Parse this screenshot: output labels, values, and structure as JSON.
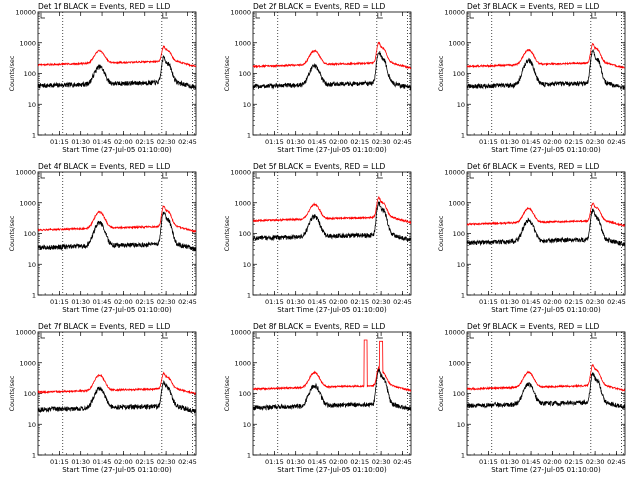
{
  "figure": {
    "background": "#ffffff"
  },
  "chart_data": [
    {
      "type": "line",
      "title": "Det 1f BLACK = Events, RED = LLD",
      "xlabel": "Start Time (27-Jul-05 01:10:00)",
      "ylabel": "Counts/sec",
      "x_ticks": [
        "01:15",
        "01:30",
        "01:45",
        "02:00",
        "02:15",
        "02:30",
        "02:45"
      ],
      "y_ticks": [
        "1",
        "10",
        "100",
        "1000",
        "10000"
      ],
      "yscale": "log",
      "ylim": [
        1,
        10000
      ],
      "series": [
        {
          "color": "#000000",
          "base": 40,
          "peak1": 160,
          "peak2": 330
        },
        {
          "color": "#ff0000",
          "base": 190,
          "peak1": 520,
          "peak2": 700
        }
      ]
    },
    {
      "type": "line",
      "title": "Det 2f BLACK = Events, RED = LLD",
      "xlabel": "Start Time (27-Jul-05 01:10:00)",
      "ylabel": "Counts/sec",
      "x_ticks": [
        "01:15",
        "01:30",
        "01:45",
        "02:00",
        "02:15",
        "02:30",
        "02:45"
      ],
      "y_ticks": [
        "1",
        "10",
        "100",
        "1000",
        "10000"
      ],
      "yscale": "log",
      "ylim": [
        1,
        10000
      ],
      "series": [
        {
          "color": "#000000",
          "base": 38,
          "peak1": 170,
          "peak2": 520
        },
        {
          "color": "#ff0000",
          "base": 170,
          "peak1": 520,
          "peak2": 950
        }
      ]
    },
    {
      "type": "line",
      "title": "Det 3f BLACK = Events, RED = LLD",
      "xlabel": "Start Time (27-Jul-05 01:10:00)",
      "ylabel": "Counts/sec",
      "x_ticks": [
        "01:15",
        "01:30",
        "01:45",
        "02:00",
        "02:15",
        "02:30",
        "02:45"
      ],
      "y_ticks": [
        "1",
        "10",
        "100",
        "1000",
        "10000"
      ],
      "yscale": "log",
      "ylim": [
        1,
        10000
      ],
      "series": [
        {
          "color": "#000000",
          "base": 38,
          "peak1": 260,
          "peak2": 520
        },
        {
          "color": "#ff0000",
          "base": 170,
          "peak1": 560,
          "peak2": 850
        }
      ]
    },
    {
      "type": "line",
      "title": "Det 4f BLACK = Events, RED = LLD",
      "xlabel": "Start Time (27-Jul-05 01:10:00)",
      "ylabel": "Counts/sec",
      "x_ticks": [
        "01:15",
        "01:30",
        "01:45",
        "02:00",
        "02:15",
        "02:30",
        "02:45"
      ],
      "y_ticks": [
        "1",
        "10",
        "100",
        "1000",
        "10000"
      ],
      "yscale": "log",
      "ylim": [
        1,
        10000
      ],
      "series": [
        {
          "color": "#000000",
          "base": 35,
          "peak1": 220,
          "peak2": 500
        },
        {
          "color": "#ff0000",
          "base": 130,
          "peak1": 480,
          "peak2": 750
        }
      ]
    },
    {
      "type": "line",
      "title": "Det 5f BLACK = Events, RED = LLD",
      "xlabel": "Start Time (27-Jul-05 01:10:00)",
      "ylabel": "Counts/sec",
      "x_ticks": [
        "01:15",
        "01:30",
        "01:45",
        "02:00",
        "02:15",
        "02:30",
        "02:45"
      ],
      "y_ticks": [
        "1",
        "10",
        "100",
        "1000",
        "10000"
      ],
      "yscale": "log",
      "ylim": [
        1,
        10000
      ],
      "series": [
        {
          "color": "#000000",
          "base": 70,
          "peak1": 350,
          "peak2": 1000
        },
        {
          "color": "#ff0000",
          "base": 260,
          "peak1": 850,
          "peak2": 1400
        }
      ]
    },
    {
      "type": "line",
      "title": "Det 6f BLACK = Events, RED = LLD",
      "xlabel": "Start Time (27-Jul-05 01:10:00)",
      "ylabel": "Counts/sec",
      "x_ticks": [
        "01:15",
        "01:30",
        "01:45",
        "02:00",
        "02:15",
        "02:30",
        "02:45"
      ],
      "y_ticks": [
        "1",
        "10",
        "100",
        "1000",
        "10000"
      ],
      "yscale": "log",
      "ylim": [
        1,
        10000
      ],
      "series": [
        {
          "color": "#000000",
          "base": 50,
          "peak1": 260,
          "peak2": 550
        },
        {
          "color": "#ff0000",
          "base": 200,
          "peak1": 620,
          "peak2": 900
        }
      ]
    },
    {
      "type": "line",
      "title": "Det 7f BLACK = Events, RED = LLD",
      "xlabel": "Start Time (27-Jul-05 01:10:00)",
      "ylabel": "Counts/sec",
      "x_ticks": [
        "01:15",
        "01:30",
        "01:45",
        "02:00",
        "02:15",
        "02:30",
        "02:45"
      ],
      "y_ticks": [
        "1",
        "10",
        "100",
        "1000",
        "10000"
      ],
      "yscale": "log",
      "ylim": [
        1,
        10000
      ],
      "series": [
        {
          "color": "#000000",
          "base": 30,
          "peak1": 140,
          "peak2": 230
        },
        {
          "color": "#ff0000",
          "base": 110,
          "peak1": 380,
          "peak2": 420
        }
      ]
    },
    {
      "type": "line",
      "title": "Det 8f BLACK = Events, RED = LLD",
      "xlabel": "Start Time (27-Jul-05 01:10:00)",
      "ylabel": "Counts/sec",
      "x_ticks": [
        "01:15",
        "01:30",
        "01:45",
        "02:00",
        "02:15",
        "02:30",
        "02:45"
      ],
      "y_ticks": [
        "1",
        "10",
        "100",
        "1000",
        "10000"
      ],
      "yscale": "log",
      "ylim": [
        1,
        10000
      ],
      "series": [
        {
          "color": "#000000",
          "base": 35,
          "peak1": 180,
          "peak2": 580
        },
        {
          "color": "#ff0000",
          "base": 140,
          "peak1": 460,
          "peak2": 650,
          "spike_a": 5500,
          "spike_b": 5000
        }
      ]
    },
    {
      "type": "line",
      "title": "Det 9f BLACK = Events, RED = LLD",
      "xlabel": "Start Time (27-Jul-05 01:10:00)",
      "ylabel": "Counts/sec",
      "x_ticks": [
        "01:15",
        "01:30",
        "01:45",
        "02:00",
        "02:15",
        "02:30",
        "02:45"
      ],
      "y_ticks": [
        "1",
        "10",
        "100",
        "1000",
        "10000"
      ],
      "yscale": "log",
      "ylim": [
        1,
        10000
      ],
      "series": [
        {
          "color": "#000000",
          "base": 40,
          "peak1": 190,
          "peak2": 450
        },
        {
          "color": "#ff0000",
          "base": 140,
          "peak1": 470,
          "peak2": 800
        }
      ]
    }
  ]
}
